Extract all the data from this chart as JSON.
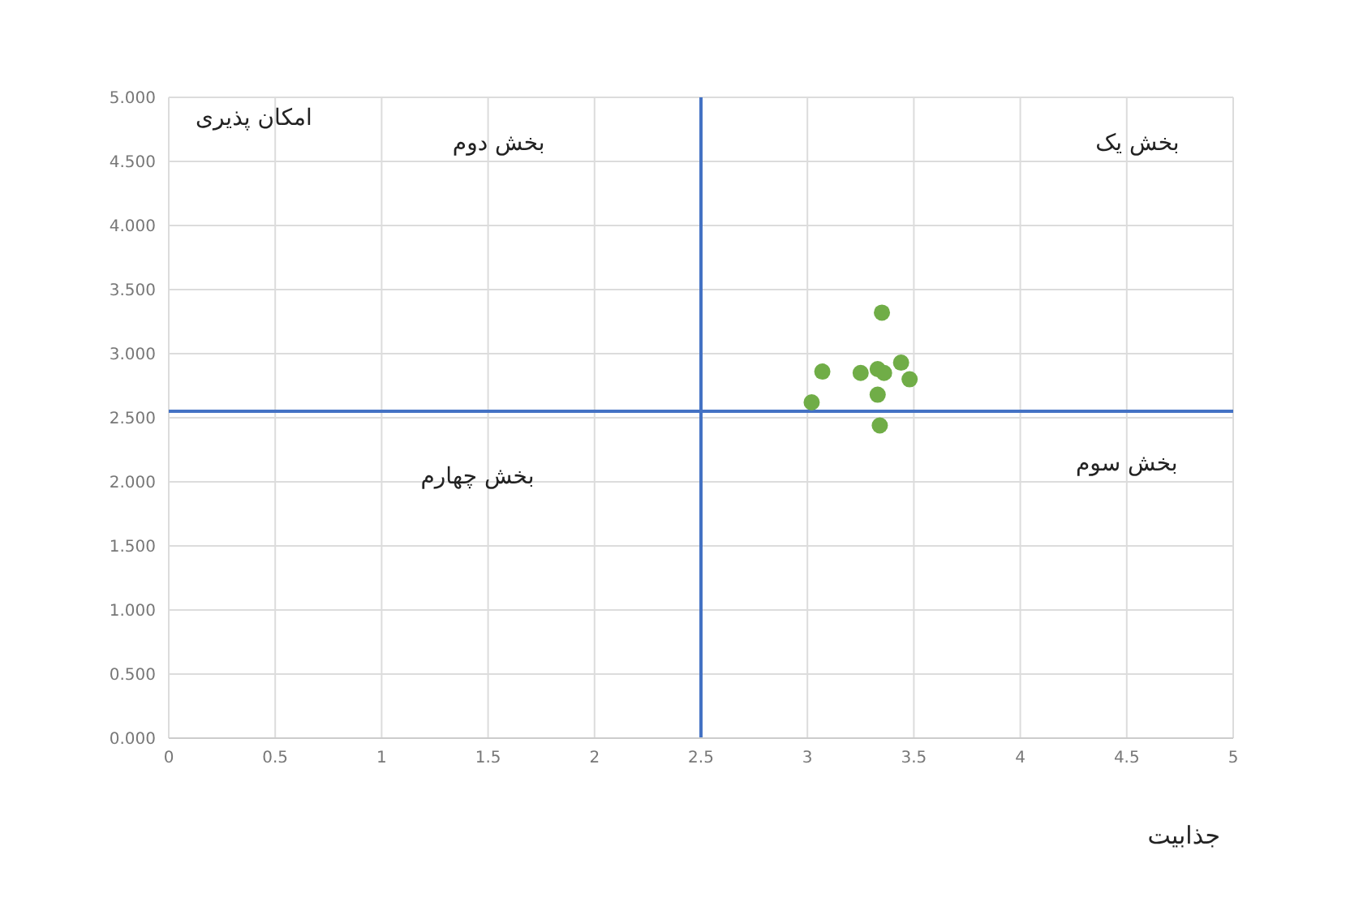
{
  "chart_data": {
    "type": "scatter",
    "xlabel": "جذابیت",
    "ylabel": "امکان پذیری",
    "annotations": [
      "بخش یک",
      "بخش دوم",
      "بخش سوم",
      "بخش چهارم"
    ],
    "series": [
      {
        "color": "#70ad47",
        "x": [
          3.02,
          3.07,
          3.25,
          3.33,
          3.36,
          3.35,
          3.33,
          3.34,
          3.44,
          3.48
        ],
        "values": [
          2.62,
          2.86,
          2.85,
          2.88,
          2.85,
          3.32,
          2.68,
          2.44,
          2.93,
          2.8
        ]
      }
    ],
    "xlim": [
      0,
      5
    ],
    "xticks": [
      0,
      0.5,
      1,
      1.5,
      2,
      2.5,
      3,
      3.5,
      4,
      4.5,
      5
    ],
    "ylim": [
      0,
      5
    ],
    "yticks": [
      {
        "value": 0,
        "label": "0.000"
      },
      {
        "value": 0.5,
        "label": "0.500"
      },
      {
        "value": 1,
        "label": "1.000"
      },
      {
        "value": 1.5,
        "label": "1.500"
      },
      {
        "value": 2,
        "label": "2.000"
      },
      {
        "value": 2.5,
        "label": "2.500"
      },
      {
        "value": 3,
        "label": "3.000"
      },
      {
        "value": 3.5,
        "label": "3.500"
      },
      {
        "value": 4,
        "label": "4.000"
      },
      {
        "value": 4.5,
        "label": "4.500"
      },
      {
        "value": 5,
        "label": "5.000"
      }
    ],
    "ref_lines": [
      {
        "axis": "x",
        "value": 2.5,
        "color": "#4472c4"
      },
      {
        "axis": "y",
        "value": 2.55,
        "color": "#4472c4"
      }
    ],
    "grid": true,
    "marker": "circle"
  }
}
